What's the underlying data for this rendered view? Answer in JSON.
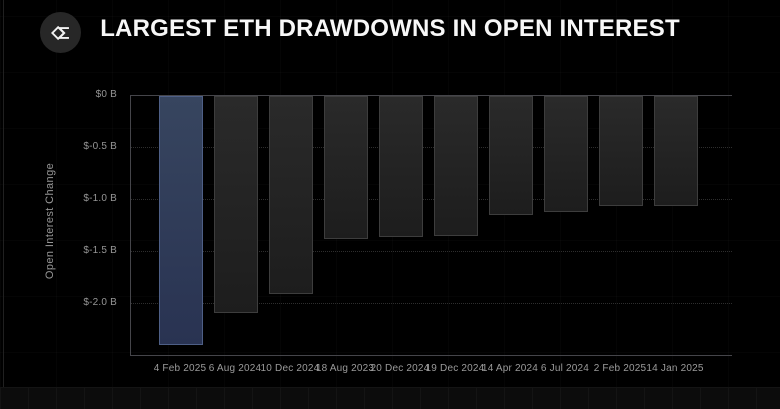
{
  "header": {
    "title": "LARGEST ETH DRAWDOWNS IN OPEN INTEREST",
    "logo_icon": "sigma-diamond-logo"
  },
  "chart_data": {
    "type": "bar",
    "title": "LARGEST ETH DRAWDOWNS IN OPEN INTEREST",
    "xlabel": "",
    "ylabel": "Open Interest Change",
    "unit": "billions USD",
    "categories": [
      "4 Feb 2025",
      "6 Aug 2024",
      "10 Dec 2024",
      "18 Aug 2023",
      "20 Dec 2024",
      "19 Dec 2024",
      "14 Apr 2024",
      "6 Jul 2024",
      "2 Feb 2025",
      "14 Jan 2025"
    ],
    "values": [
      -2.39,
      -2.09,
      -1.9,
      -1.38,
      -1.36,
      -1.35,
      -1.14,
      -1.12,
      -1.06,
      -1.06
    ],
    "ylim": [
      -2.51,
      0
    ],
    "yticks": [
      0,
      -0.5,
      -1.0,
      -1.5,
      -2.0
    ],
    "ytick_labels": [
      "$0 B",
      "$-0.5 B",
      "$-1.0 B",
      "$-1.5 B",
      "$-2.0 B"
    ],
    "grid": "horizontal-dotted",
    "legend": "none",
    "highlight_index": 0,
    "colors": {
      "background": "#000000",
      "title_text": "#f7f7f7",
      "tick_text": "#969696",
      "axis_line": "#45454a",
      "grid_line": "#2e2e2e",
      "bar_fill_top": "#2a2a2a",
      "bar_fill_bottom": "#1d1d1d",
      "bar_border": "#3d3d3d",
      "highlight_fill_top": "#37455f",
      "highlight_fill_bottom": "#293352",
      "highlight_border": "#4e5f86"
    }
  }
}
